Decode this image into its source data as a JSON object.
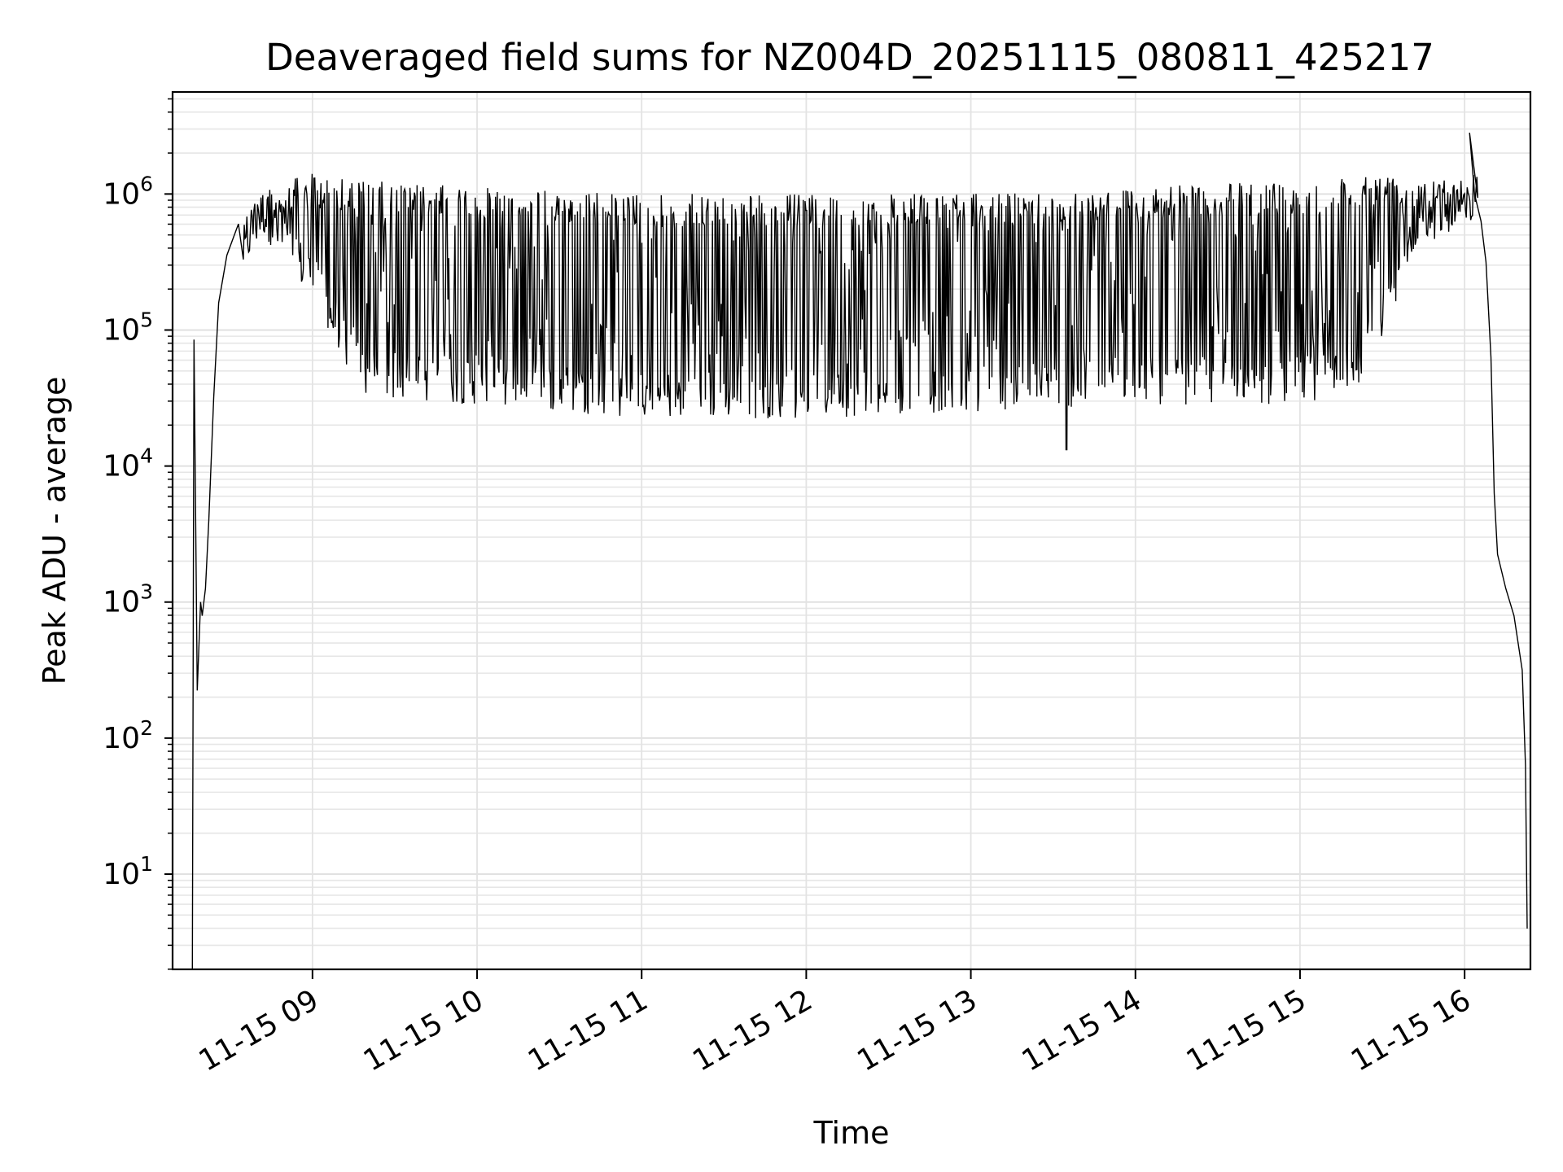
{
  "chart_data": {
    "type": "line",
    "title": "Deaveraged field sums for NZ004D_20251115_080811_425217",
    "xlabel": "Time",
    "ylabel": "Peak ADU - average",
    "yscale": "log",
    "ylim_exponents": [
      0.3,
      6.75
    ],
    "xlim_hours": [
      8.15,
      16.4
    ],
    "grid": true,
    "x_ticks": [
      {
        "hour": 9,
        "label": "11-15 09"
      },
      {
        "hour": 10,
        "label": "11-15 10"
      },
      {
        "hour": 11,
        "label": "11-15 11"
      },
      {
        "hour": 12,
        "label": "11-15 12"
      },
      {
        "hour": 13,
        "label": "11-15 13"
      },
      {
        "hour": 14,
        "label": "11-15 14"
      },
      {
        "hour": 15,
        "label": "11-15 15"
      },
      {
        "hour": 16,
        "label": "11-15 16"
      }
    ],
    "y_ticks": [
      {
        "exp": 1,
        "base": "10",
        "sup": "1"
      },
      {
        "exp": 2,
        "base": "10",
        "sup": "2"
      },
      {
        "exp": 3,
        "base": "10",
        "sup": "3"
      },
      {
        "exp": 4,
        "base": "10",
        "sup": "4"
      },
      {
        "exp": 5,
        "base": "10",
        "sup": "5"
      },
      {
        "exp": 6,
        "base": "10",
        "sup": "6"
      }
    ],
    "series": [
      {
        "name": "field sums",
        "color": "#000000",
        "envelope": [
          {
            "t": 8.28,
            "upper_log10": 4.9,
            "lower_log10": 2.4
          },
          {
            "t": 8.45,
            "upper_log10": 5.7,
            "lower_log10": 5.1
          },
          {
            "t": 8.7,
            "upper_log10": 6.05,
            "lower_log10": 5.7
          },
          {
            "t": 9.0,
            "upper_log10": 6.15,
            "lower_log10": 5.2
          },
          {
            "t": 9.3,
            "upper_log10": 6.1,
            "lower_log10": 4.5
          },
          {
            "t": 10.0,
            "upper_log10": 6.05,
            "lower_log10": 4.45
          },
          {
            "t": 11.0,
            "upper_log10": 6.0,
            "lower_log10": 4.35
          },
          {
            "t": 12.0,
            "upper_log10": 6.0,
            "lower_log10": 4.35
          },
          {
            "t": 13.0,
            "upper_log10": 6.0,
            "lower_log10": 4.4
          },
          {
            "t": 14.0,
            "upper_log10": 6.05,
            "lower_log10": 4.45
          },
          {
            "t": 15.0,
            "upper_log10": 6.1,
            "lower_log10": 4.45
          },
          {
            "t": 15.4,
            "upper_log10": 6.15,
            "lower_log10": 4.6
          },
          {
            "t": 15.7,
            "upper_log10": 6.15,
            "lower_log10": 5.6
          },
          {
            "t": 16.05,
            "upper_log10": 6.1,
            "lower_log10": 5.8
          }
        ],
        "features": [
          {
            "t": 8.27,
            "log10": 0.3,
            "note": "initial drop"
          },
          {
            "t": 8.28,
            "log10": 4.93,
            "note": "early spike"
          },
          {
            "t": 8.3,
            "log10": 2.35,
            "note": "dip"
          },
          {
            "t": 13.58,
            "log10": 4.12,
            "note": "deepest dip"
          },
          {
            "t": 16.03,
            "log10": 6.45,
            "note": "peak spike"
          },
          {
            "t": 16.2,
            "log10": 3.35,
            "note": "decline"
          },
          {
            "t": 16.38,
            "log10": 0.6,
            "note": "final value"
          }
        ]
      }
    ]
  }
}
